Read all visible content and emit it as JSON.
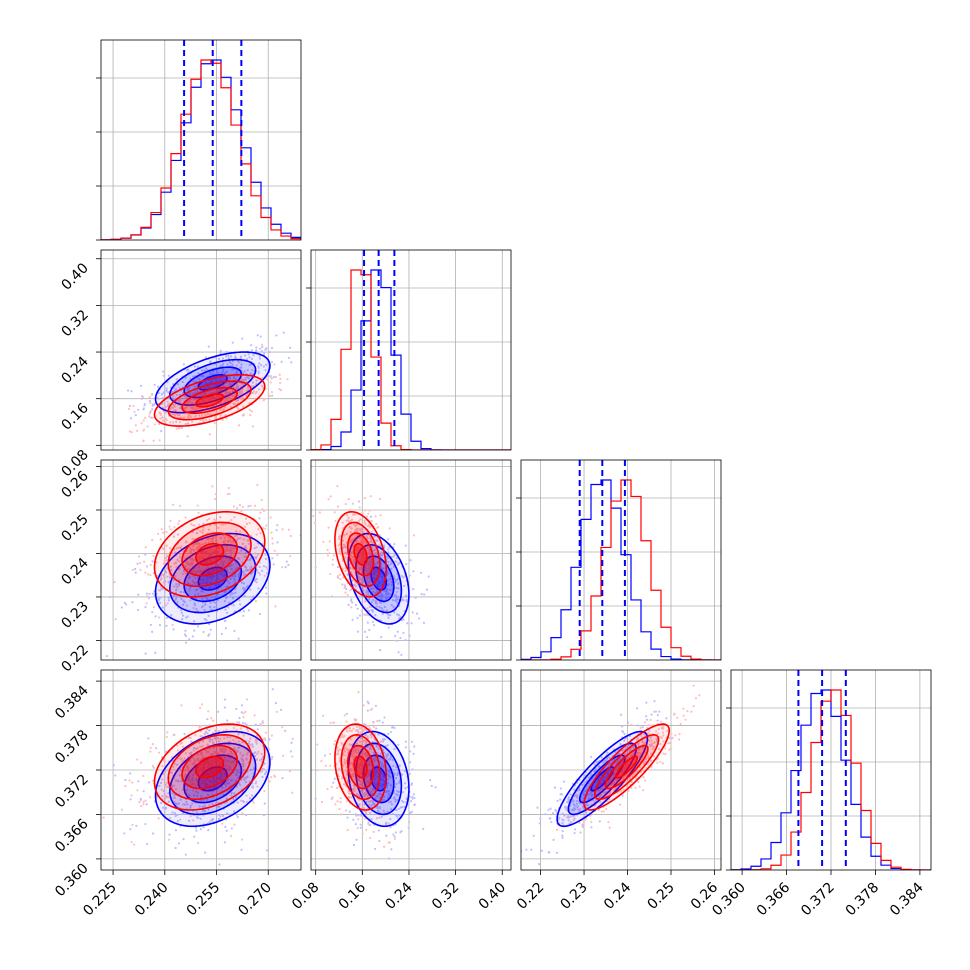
{
  "chart_data": {
    "type": "corner",
    "parameters": [
      {
        "ticks": [
          "0.225",
          "0.240",
          "0.255",
          "0.270"
        ],
        "tick_values": [
          0.225,
          0.24,
          0.255,
          0.27
        ],
        "range": [
          0.2215,
          0.2795
        ],
        "quantiles": [
          0.2456,
          0.2539,
          0.2622
        ],
        "center": 0.2539,
        "sigma": 0.0083
      },
      {
        "ticks": [
          "0.08",
          "0.16",
          "0.24",
          "0.32",
          "0.40"
        ],
        "tick_values": [
          0.08,
          0.16,
          0.24,
          0.32,
          0.4
        ],
        "range": [
          0.072,
          0.415
        ],
        "quantiles": [
          0.163,
          0.188,
          0.215
        ],
        "center": 0.188,
        "sigma": 0.026
      },
      {
        "ticks": [
          "0.22",
          "0.23",
          "0.24",
          "0.25",
          "0.26"
        ],
        "tick_values": [
          0.22,
          0.23,
          0.24,
          0.25,
          0.26
        ],
        "range": [
          0.2155,
          0.2615
        ],
        "quantiles": [
          0.229,
          0.2342,
          0.2394
        ],
        "center": 0.2342,
        "sigma": 0.0052
      },
      {
        "ticks": [
          "0.360",
          "0.366",
          "0.372",
          "0.378",
          "0.384"
        ],
        "tick_values": [
          0.36,
          0.366,
          0.372,
          0.378,
          0.384
        ],
        "range": [
          0.3585,
          0.3855
        ],
        "quantiles": [
          0.3676,
          0.3708,
          0.374
        ],
        "center": 0.3708,
        "sigma": 0.0032
      }
    ],
    "series": [
      {
        "color": "#0000ff",
        "center": [
          0.2539,
          0.188,
          0.2342,
          0.3708
        ],
        "sigma": [
          0.0083,
          0.026,
          0.0052,
          0.0032
        ]
      },
      {
        "color": "#ff0000",
        "center": [
          0.253,
          0.157,
          0.2398,
          0.3724
        ],
        "sigma": [
          0.008,
          0.022,
          0.0049,
          0.0029
        ]
      }
    ],
    "correlations": {
      "1-0": 0.55,
      "2-0": 0.3,
      "2-1": -0.35,
      "3-0": 0.35,
      "3-1": -0.2,
      "3-2": 0.85
    },
    "grid": true,
    "quantile_color": "#0000ff",
    "quantile_style": "dashed"
  }
}
